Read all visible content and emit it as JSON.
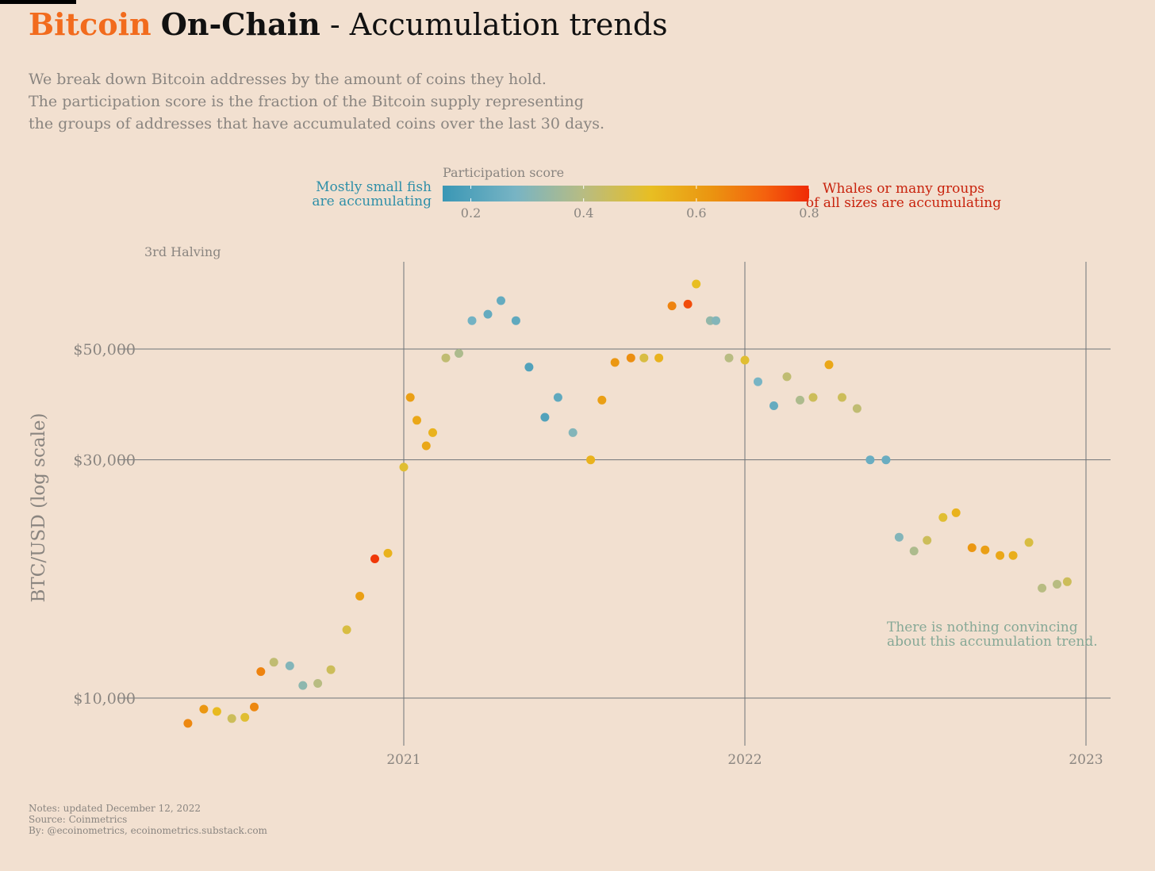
{
  "header": {
    "brand": "Bitcoin",
    "main": "On-Chain",
    "rest": " - Accumulation trends",
    "subtitle": [
      "We break down Bitcoin addresses by the amount of coins they hold.",
      "The participation score is the fraction of the Bitcoin supply representing",
      "the groups of addresses that have accumulated coins over the last 30 days."
    ]
  },
  "legend": {
    "title": "Participation score",
    "left_label": [
      "Mostly small fish",
      "are accumulating"
    ],
    "right_label": [
      "Whales or many groups",
      "of all sizes are accumulating"
    ],
    "ticks": [
      0.2,
      0.4,
      0.6,
      0.8
    ],
    "range": [
      0.15,
      0.8
    ],
    "colors": [
      {
        "v": 0.15,
        "c": "#3a97b5"
      },
      {
        "v": 0.28,
        "c": "#78b4c4"
      },
      {
        "v": 0.4,
        "c": "#b8bc82"
      },
      {
        "v": 0.52,
        "c": "#e8be22"
      },
      {
        "v": 0.63,
        "c": "#eb9310"
      },
      {
        "v": 0.72,
        "c": "#f4620e"
      },
      {
        "v": 0.8,
        "c": "#ef2a06"
      }
    ],
    "left_color": "#2e8fa8",
    "right_color": "#c8220c"
  },
  "annotations": {
    "halving": "3rd Halving",
    "note": [
      "There is nothing convincing",
      "about this accumulation trend."
    ],
    "note_color": "#86a896"
  },
  "footer": {
    "lines": [
      "Notes: updated December 12, 2022",
      "Source: Coinmetrics",
      "By: @ecoinometrics, ecoinometrics.substack.com"
    ]
  },
  "chart_data": {
    "type": "scatter",
    "title": "Bitcoin On-Chain - Accumulation trends",
    "ylabel": "BTC/USD (log scale)",
    "xlabel": "",
    "y_scale": "log",
    "x_range": [
      "2020-05-11",
      "2022-12-31"
    ],
    "y_range": [
      8000,
      70000
    ],
    "x_ticks": [
      {
        "date": "2021-01-01",
        "label": "2021"
      },
      {
        "date": "2022-01-01",
        "label": "2022"
      },
      {
        "date": "2023-01-01",
        "label": "2023"
      }
    ],
    "y_ticks": [
      {
        "value": 10000,
        "label": "$10,000"
      },
      {
        "value": 30000,
        "label": "$30,000"
      },
      {
        "value": 50000,
        "label": "$50,000"
      }
    ],
    "grid": true,
    "color_by": "participation score",
    "points": [
      [
        "2020-05-15",
        8900,
        0.65
      ],
      [
        "2020-06-01",
        9500,
        0.62
      ],
      [
        "2020-06-15",
        9400,
        0.53
      ],
      [
        "2020-07-01",
        9100,
        0.45
      ],
      [
        "2020-07-15",
        9150,
        0.5
      ],
      [
        "2020-07-25",
        9600,
        0.65
      ],
      [
        "2020-08-01",
        11300,
        0.66
      ],
      [
        "2020-08-15",
        11800,
        0.42
      ],
      [
        "2020-09-01",
        11600,
        0.3
      ],
      [
        "2020-09-15",
        10600,
        0.32
      ],
      [
        "2020-10-01",
        10700,
        0.4
      ],
      [
        "2020-10-15",
        11400,
        0.45
      ],
      [
        "2020-11-01",
        13700,
        0.48
      ],
      [
        "2020-11-15",
        16000,
        0.6
      ],
      [
        "2020-12-01",
        19000,
        0.78
      ],
      [
        "2020-12-15",
        19500,
        0.55
      ],
      [
        "2021-01-01",
        29000,
        0.5
      ],
      [
        "2021-01-08",
        40000,
        0.6
      ],
      [
        "2021-01-15",
        36000,
        0.58
      ],
      [
        "2021-01-25",
        32000,
        0.58
      ],
      [
        "2021-02-01",
        34000,
        0.55
      ],
      [
        "2021-02-15",
        48000,
        0.42
      ],
      [
        "2021-03-01",
        49000,
        0.38
      ],
      [
        "2021-03-15",
        57000,
        0.27
      ],
      [
        "2021-04-01",
        58700,
        0.24
      ],
      [
        "2021-04-15",
        62500,
        0.24
      ],
      [
        "2021-05-01",
        57000,
        0.23
      ],
      [
        "2021-05-15",
        46000,
        0.2
      ],
      [
        "2021-06-01",
        36500,
        0.2
      ],
      [
        "2021-06-15",
        40000,
        0.23
      ],
      [
        "2021-07-01",
        34000,
        0.3
      ],
      [
        "2021-07-20",
        30000,
        0.55
      ],
      [
        "2021-08-01",
        39500,
        0.6
      ],
      [
        "2021-08-15",
        47000,
        0.62
      ],
      [
        "2021-09-01",
        48000,
        0.64
      ],
      [
        "2021-09-15",
        48000,
        0.48
      ],
      [
        "2021-10-01",
        48000,
        0.55
      ],
      [
        "2021-10-15",
        61000,
        0.66
      ],
      [
        "2021-11-01",
        61500,
        0.75
      ],
      [
        "2021-11-10",
        67500,
        0.52
      ],
      [
        "2021-11-25",
        57000,
        0.33
      ],
      [
        "2021-12-01",
        57000,
        0.3
      ],
      [
        "2021-12-15",
        48000,
        0.4
      ],
      [
        "2022-01-01",
        47500,
        0.5
      ],
      [
        "2022-01-15",
        43000,
        0.28
      ],
      [
        "2022-02-01",
        38500,
        0.24
      ],
      [
        "2022-02-15",
        44000,
        0.42
      ],
      [
        "2022-03-01",
        39500,
        0.38
      ],
      [
        "2022-03-15",
        40000,
        0.45
      ],
      [
        "2022-04-01",
        46500,
        0.58
      ],
      [
        "2022-04-15",
        40000,
        0.45
      ],
      [
        "2022-05-01",
        38000,
        0.42
      ],
      [
        "2022-05-15",
        30000,
        0.25
      ],
      [
        "2022-06-01",
        30000,
        0.25
      ],
      [
        "2022-06-15",
        21000,
        0.3
      ],
      [
        "2022-07-01",
        19700,
        0.38
      ],
      [
        "2022-07-15",
        20700,
        0.45
      ],
      [
        "2022-08-01",
        23000,
        0.5
      ],
      [
        "2022-08-15",
        23500,
        0.55
      ],
      [
        "2022-09-01",
        20000,
        0.62
      ],
      [
        "2022-09-15",
        19800,
        0.6
      ],
      [
        "2022-10-01",
        19300,
        0.58
      ],
      [
        "2022-10-15",
        19300,
        0.56
      ],
      [
        "2022-11-01",
        20500,
        0.48
      ],
      [
        "2022-11-15",
        16600,
        0.4
      ],
      [
        "2022-12-01",
        16900,
        0.4
      ],
      [
        "2022-12-12",
        17100,
        0.45
      ]
    ]
  }
}
